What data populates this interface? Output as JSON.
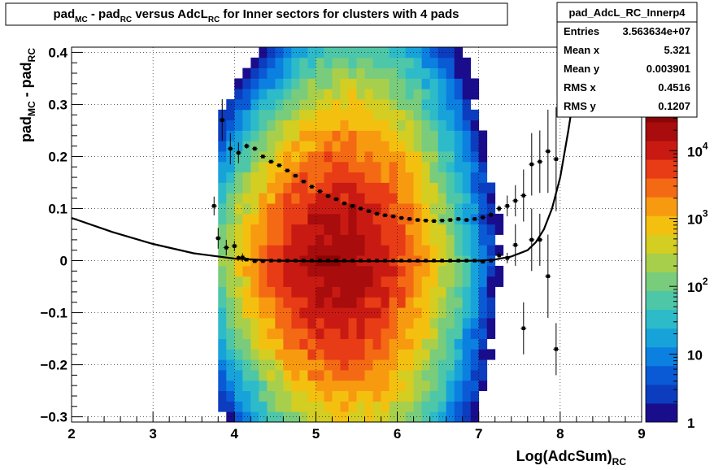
{
  "chart_data": {
    "type": "heatmap",
    "title_parts": [
      {
        "t": "pad"
      },
      {
        "t": "MC",
        "sub": true
      },
      {
        "t": " - pad"
      },
      {
        "t": "RC",
        "sub": true
      },
      {
        "t": " versus AdcL"
      },
      {
        "t": "RC",
        "sub": true
      },
      {
        "t": " for Inner sectors for clusters with 4 pads"
      }
    ],
    "xlabel_parts": [
      {
        "t": "Log(AdcSum)"
      },
      {
        "t": "RC",
        "sub": true
      }
    ],
    "ylabel_parts": [
      {
        "t": "pad"
      },
      {
        "t": "MC",
        "sub": true
      },
      {
        "t": " - pad"
      },
      {
        "t": "RC",
        "sub": true
      }
    ],
    "xlim": [
      2,
      9
    ],
    "ylim": [
      -0.31,
      0.41
    ],
    "x_ticks": [
      2,
      3,
      4,
      5,
      6,
      7,
      8,
      9
    ],
    "x_tick_labels": [
      "2",
      "3",
      "4",
      "5",
      "6",
      "7",
      "8",
      "9"
    ],
    "y_ticks": [
      -0.3,
      -0.2,
      -0.1,
      0,
      0.1,
      0.2,
      0.3,
      0.4
    ],
    "y_tick_labels": [
      "−0.3",
      "−0.2",
      "−0.1",
      "0",
      "0.1",
      "0.2",
      "0.3",
      "0.4"
    ],
    "grid": true,
    "z_scale": "log",
    "z_range": [
      1,
      50000
    ],
    "palette": [
      "#1a0d8c",
      "#0c3dbf",
      "#0a5ad6",
      "#0b80e0",
      "#17a3da",
      "#2ebbc9",
      "#4ec7a8",
      "#78cc7c",
      "#a8cf4c",
      "#d4cd22",
      "#f4c010",
      "#f79a10",
      "#f46a14",
      "#e73c16",
      "#c81a12",
      "#a80c0c",
      "#8a0505"
    ],
    "z_axis_labels": [
      {
        "value": 1,
        "label": "1"
      },
      {
        "value": 10,
        "label": "10"
      },
      {
        "value": 100,
        "label": "10",
        "exp": "2"
      },
      {
        "value": 1000,
        "label": "10",
        "exp": "3"
      },
      {
        "value": 10000,
        "label": "10",
        "exp": "4"
      }
    ],
    "density_model": {
      "x_bins": [
        3.8,
        8.6,
        0.1
      ],
      "y_bins": [
        -0.31,
        0.41,
        0.02
      ],
      "peak_log10": 4.35,
      "x_center": 5.25,
      "x_rising_edge": 3.82,
      "x_falling_tail": 7.7,
      "y_width": 0.055,
      "y_width_growth": 0.08
    },
    "series": [
      {
        "name": "",
        "kind": "profile",
        "x": [
          3.75,
          3.8,
          3.85,
          3.9,
          3.95,
          4.0,
          4.05,
          4.1,
          4.15,
          4.25,
          4.35,
          4.45,
          4.55,
          4.65,
          4.75,
          4.85,
          4.95,
          5.05,
          5.15,
          5.25,
          5.35,
          5.45,
          5.55,
          5.65,
          5.75,
          5.85,
          5.95,
          6.05,
          6.15,
          6.25,
          6.35,
          6.45,
          6.55,
          6.65,
          6.75,
          6.85,
          6.95,
          7.05,
          7.15,
          7.25,
          7.35,
          7.45,
          7.55,
          7.65,
          7.75,
          7.85,
          7.95
        ],
        "y": [
          0.105,
          0.043,
          0.27,
          0.025,
          0.215,
          0.028,
          0.207,
          0.006,
          0.22,
          0.215,
          0.2,
          0.19,
          0.183,
          0.173,
          0.163,
          0.152,
          0.142,
          0.133,
          0.124,
          0.118,
          0.11,
          0.105,
          0.1,
          0.095,
          0.09,
          0.087,
          0.085,
          0.082,
          0.08,
          0.078,
          0.077,
          0.076,
          0.077,
          0.078,
          0.08,
          0.078,
          0.08,
          0.083,
          0.088,
          0.1,
          0.105,
          0.115,
          0.125,
          0.185,
          0.19,
          0.21,
          0.195
        ],
        "yerr": [
          0.018,
          0.02,
          0.04,
          0.015,
          0.03,
          0.01,
          0.02,
          0.008,
          0.005,
          0.004,
          0.003,
          0.003,
          0.003,
          0.002,
          0.002,
          0.002,
          0.002,
          0.002,
          0.002,
          0.002,
          0.002,
          0.002,
          0.002,
          0.002,
          0.002,
          0.002,
          0.002,
          0.002,
          0.002,
          0.002,
          0.002,
          0.002,
          0.002,
          0.002,
          0.003,
          0.003,
          0.003,
          0.004,
          0.005,
          0.006,
          0.02,
          0.03,
          0.05,
          0.06,
          0.06,
          0.08,
          0.1
        ]
      },
      {
        "name": "",
        "kind": "profile",
        "x": [
          4.05,
          4.15,
          4.25,
          4.35,
          4.45,
          4.55,
          4.65,
          4.75,
          4.85,
          4.95,
          5.05,
          5.15,
          5.25,
          5.35,
          5.45,
          5.55,
          5.65,
          5.75,
          5.85,
          5.95,
          6.05,
          6.15,
          6.25,
          6.35,
          6.45,
          6.55,
          6.65,
          6.75,
          6.85,
          6.95,
          7.05,
          7.15,
          7.25,
          7.35,
          7.45,
          7.55,
          7.65,
          7.75,
          7.85,
          7.95
        ],
        "y": [
          0.005,
          0.002,
          -0.001,
          -0.001,
          0.0,
          0.0,
          0.0,
          0.0,
          0.0,
          0.0,
          0.0,
          0.0,
          0.0,
          0.0,
          0.0,
          0.0,
          0.0,
          0.0,
          0.0,
          0.0,
          0.0,
          0.0,
          0.0,
          0.0,
          0.0,
          0.0,
          0.0,
          0.0,
          0.0,
          0.0,
          -0.002,
          0.0,
          0.01,
          0.005,
          0.03,
          -0.13,
          0.04,
          0.04,
          -0.03,
          -0.17
        ],
        "yerr": [
          0.005,
          0.003,
          0.002,
          0.002,
          0.001,
          0.001,
          0.001,
          0.001,
          0.001,
          0.001,
          0.001,
          0.001,
          0.001,
          0.001,
          0.001,
          0.001,
          0.001,
          0.001,
          0.001,
          0.001,
          0.001,
          0.001,
          0.001,
          0.001,
          0.001,
          0.001,
          0.001,
          0.001,
          0.002,
          0.002,
          0.003,
          0.004,
          0.006,
          0.01,
          0.04,
          0.05,
          0.06,
          0.05,
          0.08,
          0.05
        ]
      }
    ],
    "fit_curve": {
      "x": [
        2.0,
        2.5,
        3.0,
        3.5,
        4.0,
        4.5,
        5.0,
        5.5,
        6.0,
        6.5,
        7.0,
        7.2,
        7.4,
        7.6,
        7.7,
        7.8,
        7.9,
        8.0,
        8.1,
        8.2,
        8.28
      ],
      "y": [
        0.082,
        0.055,
        0.032,
        0.014,
        0.004,
        0.0,
        -0.001,
        -0.001,
        -0.001,
        -0.001,
        0.0,
        0.002,
        0.008,
        0.02,
        0.035,
        0.06,
        0.1,
        0.16,
        0.25,
        0.35,
        0.41
      ]
    },
    "stats_box": {
      "title": "pad_AdcL_RC_Innerp4",
      "rows": [
        {
          "label": "Entries",
          "value": "3.563634e+07"
        },
        {
          "label": "Mean x",
          "value": "5.321"
        },
        {
          "label": "Mean y",
          "value": "0.003901"
        },
        {
          "label": "RMS x",
          "value": "0.4516"
        },
        {
          "label": "RMS y",
          "value": "0.1207"
        }
      ]
    }
  }
}
